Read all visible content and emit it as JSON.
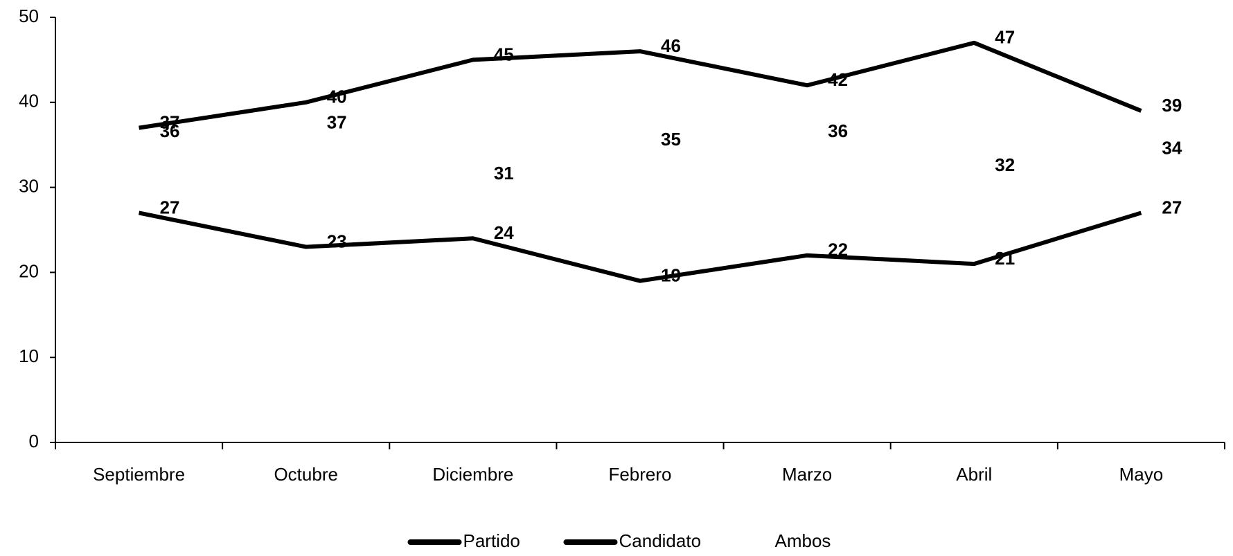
{
  "chart_data": {
    "type": "line",
    "categories": [
      "Septiembre",
      "Octubre",
      "Diciembre",
      "Febrero",
      "Marzo",
      "Abril",
      "Mayo"
    ],
    "series": [
      {
        "name": "Partido",
        "color": "#000000",
        "values": [
          37,
          40,
          45,
          46,
          42,
          47,
          39
        ]
      },
      {
        "name": "Candidato",
        "color": "#000000",
        "values": [
          27,
          23,
          24,
          19,
          22,
          21,
          27
        ]
      },
      {
        "name": "Ambos",
        "color": "#ffffff",
        "values": [
          36,
          37,
          31,
          35,
          36,
          32,
          34
        ]
      }
    ],
    "ylim": [
      0,
      50
    ],
    "yticks": [
      0,
      10,
      20,
      30,
      40,
      50
    ],
    "grid": false,
    "legend": "bottom"
  }
}
